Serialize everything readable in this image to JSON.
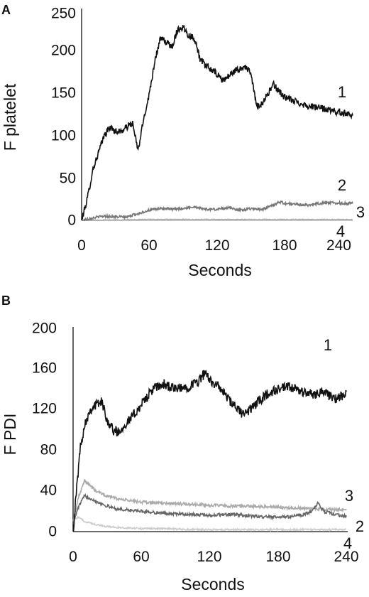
{
  "chart_data": [
    {
      "type": "line",
      "panel_label": "A",
      "xlabel": "Seconds",
      "ylabel": "F platelet",
      "xlim": [
        0,
        240
      ],
      "ylim": [
        0,
        250
      ],
      "xticks": [
        0,
        60,
        120,
        180,
        240
      ],
      "yticks": [
        0,
        50,
        100,
        150,
        200,
        250
      ],
      "grid": false,
      "series": [
        {
          "label": "1",
          "color": "#111111",
          "noise": 4,
          "x": [
            0,
            5,
            10,
            15,
            20,
            25,
            30,
            35,
            40,
            45,
            48,
            50,
            55,
            60,
            65,
            70,
            75,
            80,
            85,
            90,
            95,
            100,
            105,
            110,
            115,
            120,
            125,
            130,
            135,
            140,
            145,
            150,
            155,
            160,
            165,
            170,
            175,
            180,
            190,
            200,
            210,
            220,
            230,
            240
          ],
          "y": [
            0,
            25,
            60,
            80,
            100,
            110,
            105,
            105,
            110,
            115,
            95,
            82,
            120,
            150,
            190,
            215,
            210,
            205,
            225,
            228,
            218,
            215,
            190,
            182,
            178,
            172,
            165,
            170,
            176,
            178,
            182,
            172,
            135,
            138,
            150,
            160,
            152,
            145,
            140,
            135,
            133,
            130,
            127,
            125
          ]
        },
        {
          "label": "2",
          "color": "#777777",
          "noise": 1.5,
          "x": [
            0,
            10,
            20,
            30,
            40,
            50,
            60,
            70,
            80,
            90,
            100,
            110,
            120,
            130,
            140,
            150,
            160,
            170,
            175,
            180,
            190,
            200,
            210,
            220,
            230,
            240
          ],
          "y": [
            0,
            3,
            5,
            4,
            4,
            8,
            12,
            14,
            13,
            14,
            16,
            13,
            13,
            15,
            12,
            14,
            13,
            18,
            22,
            20,
            19,
            18,
            20,
            21,
            20,
            20
          ]
        },
        {
          "label": "3",
          "color": "#aaaaaa",
          "noise": 0.5,
          "x": [
            0,
            60,
            120,
            180,
            240
          ],
          "y": [
            0,
            1,
            1,
            1,
            1
          ]
        },
        {
          "label": "4",
          "color": "#cccccc",
          "noise": 0.3,
          "x": [
            0,
            60,
            120,
            180,
            240
          ],
          "y": [
            0,
            0,
            0,
            0,
            0
          ]
        }
      ]
    },
    {
      "type": "line",
      "panel_label": "B",
      "xlabel": "Seconds",
      "ylabel": "F PDI",
      "xlim": [
        0,
        240
      ],
      "ylim": [
        0,
        200
      ],
      "xticks": [
        0,
        60,
        120,
        180,
        240
      ],
      "yticks": [
        0,
        40,
        80,
        120,
        160,
        200
      ],
      "grid": false,
      "series": [
        {
          "label": "1",
          "color": "#111111",
          "noise": 5,
          "x": [
            0,
            3,
            6,
            10,
            15,
            20,
            25,
            30,
            35,
            40,
            45,
            50,
            60,
            70,
            80,
            90,
            100,
            110,
            115,
            120,
            130,
            140,
            150,
            160,
            170,
            180,
            190,
            200,
            210,
            220,
            230,
            240
          ],
          "y": [
            0,
            40,
            80,
            105,
            120,
            125,
            128,
            110,
            100,
            98,
            105,
            110,
            125,
            140,
            145,
            140,
            142,
            148,
            155,
            150,
            140,
            125,
            115,
            125,
            135,
            140,
            142,
            138,
            135,
            138,
            130,
            135
          ]
        },
        {
          "label": "2",
          "color": "#666666",
          "noise": 1.5,
          "x": [
            0,
            5,
            10,
            15,
            20,
            30,
            40,
            60,
            80,
            100,
            120,
            140,
            160,
            180,
            200,
            210,
            215,
            220,
            230,
            240
          ],
          "y": [
            8,
            25,
            35,
            33,
            30,
            25,
            22,
            20,
            18,
            17,
            16,
            17,
            15,
            14,
            16,
            20,
            28,
            20,
            17,
            15
          ]
        },
        {
          "label": "3",
          "color": "#aaaaaa",
          "noise": 1.5,
          "x": [
            0,
            5,
            10,
            15,
            20,
            30,
            40,
            60,
            80,
            100,
            120,
            140,
            160,
            180,
            200,
            220,
            240
          ],
          "y": [
            10,
            35,
            50,
            45,
            40,
            35,
            32,
            29,
            28,
            27,
            26,
            25,
            25,
            24,
            23,
            22,
            21
          ]
        },
        {
          "label": "4",
          "color": "#cccccc",
          "noise": 0.8,
          "x": [
            0,
            5,
            10,
            20,
            30,
            40,
            60,
            80,
            100,
            120,
            160,
            200,
            240
          ],
          "y": [
            12,
            14,
            10,
            7,
            5,
            4,
            3,
            3,
            2,
            2,
            2,
            2,
            2
          ]
        }
      ]
    }
  ]
}
